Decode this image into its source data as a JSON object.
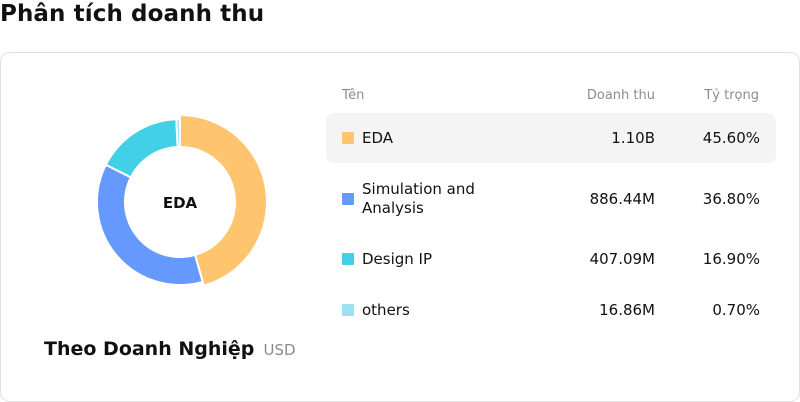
{
  "page": {
    "title": "Phân tích doanh thu"
  },
  "card": {
    "title": "Theo Doanh Nghiệp",
    "unit": "USD"
  },
  "table": {
    "headers": {
      "name": "Tên",
      "revenue": "Doanh thu",
      "share": "Tỷ trọng"
    },
    "rows": [
      {
        "name": "EDA",
        "revenue": "1.10B",
        "share": "45.60%",
        "color": "#ffc46e",
        "active": true
      },
      {
        "name": "Simulation and Analysis",
        "revenue": "886.44M",
        "share": "36.80%",
        "color": "#6599fe",
        "active": false
      },
      {
        "name": "Design IP",
        "revenue": "407.09M",
        "share": "16.90%",
        "color": "#41d0e5",
        "active": false
      },
      {
        "name": "others",
        "revenue": "16.86M",
        "share": "0.70%",
        "color": "#9ce0f2",
        "active": false
      }
    ]
  },
  "chart_data": {
    "type": "pie",
    "variant": "donut",
    "center_label": "EDA",
    "categories": [
      "EDA",
      "Simulation and Analysis",
      "Design IP",
      "others"
    ],
    "values": [
      45.6,
      36.8,
      16.9,
      0.7
    ],
    "colors": [
      "#ffc46e",
      "#6599fe",
      "#41d0e5",
      "#9ce0f2"
    ],
    "highlighted": "EDA",
    "legend": "right"
  }
}
